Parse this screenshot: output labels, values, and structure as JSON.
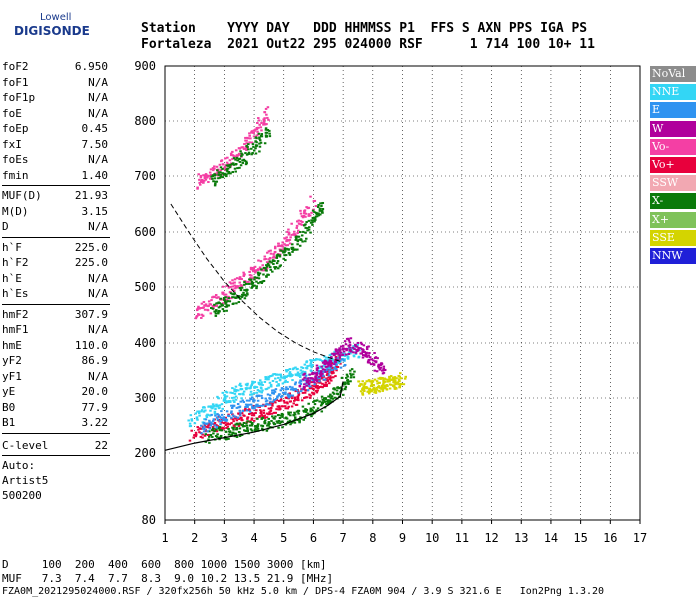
{
  "logo": {
    "line1": "Lowell",
    "line2": "DIGISONDE"
  },
  "header": {
    "line1": "Station    YYYY DAY   DDD HHMMSS P1  FFS S AXN PPS IGA PS",
    "line2": "Fortaleza  2021 Out22 295 024000 RSF      1 714 100 10+ 11"
  },
  "params_group1": [
    {
      "name": "foF2",
      "value": "6.950"
    },
    {
      "name": "foF1",
      "value": "N/A"
    },
    {
      "name": "foF1p",
      "value": "N/A"
    },
    {
      "name": "foE",
      "value": "N/A"
    },
    {
      "name": "foEp",
      "value": "0.45"
    },
    {
      "name": "fxI",
      "value": "7.50"
    },
    {
      "name": "foEs",
      "value": "N/A"
    },
    {
      "name": "fmin",
      "value": "1.40"
    }
  ],
  "params_group2": [
    {
      "name": "MUF(D)",
      "value": "21.93"
    },
    {
      "name": "M(D)",
      "value": "3.15"
    },
    {
      "name": "D",
      "value": "N/A"
    }
  ],
  "params_group3": [
    {
      "name": "h`F",
      "value": "225.0"
    },
    {
      "name": "h`F2",
      "value": "225.0"
    },
    {
      "name": "h`E",
      "value": "N/A"
    },
    {
      "name": "h`Es",
      "value": "N/A"
    }
  ],
  "params_group4": [
    {
      "name": "hmF2",
      "value": "307.9"
    },
    {
      "name": "hmF1",
      "value": "N/A"
    },
    {
      "name": "hmE",
      "value": "110.0"
    },
    {
      "name": "yF2",
      "value": "86.9"
    },
    {
      "name": "yF1",
      "value": "N/A"
    },
    {
      "name": "yE",
      "value": "20.0"
    },
    {
      "name": "B0",
      "value": "77.9"
    },
    {
      "name": "B1",
      "value": "3.22"
    }
  ],
  "clevel": {
    "name": "C-level",
    "value": "22"
  },
  "auto": {
    "line1": "Auto:",
    "line2": "Artist5",
    "line3": "500200"
  },
  "footer": {
    "d_line": "D     100  200  400  600  800 1000 1500 3000 [km]",
    "muf_line": "MUF   7.3  7.4  7.7  8.3  9.0 10.2 13.5 21.9 [MHz]",
    "info_line": "FZA0M_2021295024000.RSF / 320fx256h 50 kHz 5.0 km / DPS-4 FZA0M 904 / 3.9 S 321.6 E   Ion2Png 1.3.20"
  },
  "legend": [
    {
      "label": "NoVal",
      "color": "#8c8c8c"
    },
    {
      "label": "NNE",
      "color": "#33d6f5"
    },
    {
      "label": "E",
      "color": "#2f93f0"
    },
    {
      "label": "W",
      "color": "#b0009c"
    },
    {
      "label": "Vo-",
      "color": "#f43fa4"
    },
    {
      "label": "Vo+",
      "color": "#e8003c"
    },
    {
      "label": "SSW",
      "color": "#f2a8b2"
    },
    {
      "label": "X-",
      "color": "#0a7a0a"
    },
    {
      "label": "X+",
      "color": "#7fc25a"
    },
    {
      "label": "SSE",
      "color": "#d4d400"
    },
    {
      "label": "NNW",
      "color": "#1f1fd8"
    }
  ],
  "chart_data": {
    "type": "scatter",
    "xlabel": "",
    "ylabel": "",
    "xlim": [
      1,
      17
    ],
    "ylim": [
      80,
      900
    ],
    "x_ticks": [
      1,
      2,
      3,
      4,
      5,
      6,
      7,
      8,
      9,
      10,
      11,
      12,
      13,
      14,
      15,
      16,
      17
    ],
    "y_ticks": [
      80,
      200,
      300,
      400,
      500,
      600,
      700,
      800,
      900
    ],
    "grid": true,
    "traces": [
      {
        "name": "F2 O-mode",
        "color": "#e8003c",
        "x": [
          1.9,
          2.5,
          3.0,
          3.5,
          4.0,
          4.5,
          5.0,
          5.5,
          6.0,
          6.3,
          6.6,
          6.8
        ],
        "y": [
          235,
          248,
          258,
          266,
          274,
          282,
          292,
          305,
          320,
          332,
          350,
          380
        ]
      },
      {
        "name": "F2 X-mode",
        "color": "#0a7a0a",
        "x": [
          2.4,
          3.0,
          3.5,
          4.0,
          4.5,
          5.0,
          5.5,
          6.0,
          6.5,
          6.9,
          7.3
        ],
        "y": [
          232,
          238,
          244,
          250,
          256,
          262,
          270,
          285,
          300,
          320,
          350
        ]
      },
      {
        "name": "2F2 echo",
        "color": "#f43fa4",
        "x": [
          2.0,
          2.5,
          3.0,
          3.5,
          4.0,
          4.5,
          5.0,
          5.5,
          6.0
        ],
        "y": [
          455,
          470,
          490,
          510,
          530,
          555,
          585,
          620,
          660
        ]
      },
      {
        "name": "2F2 X echo",
        "color": "#0a7a0a",
        "x": [
          2.6,
          3.0,
          3.5,
          4.0,
          4.5,
          5.0,
          5.5,
          6.0,
          6.3
        ],
        "y": [
          460,
          472,
          490,
          512,
          535,
          560,
          590,
          625,
          650
        ]
      },
      {
        "name": "3F2 echo",
        "color": "#f43fa4",
        "x": [
          2.1,
          2.5,
          3.0,
          3.5,
          4.0,
          4.5
        ],
        "y": [
          690,
          705,
          725,
          750,
          780,
          820
        ]
      },
      {
        "name": "3F2 X echo",
        "color": "#0a7a0a",
        "x": [
          2.6,
          3.0,
          3.5,
          4.0,
          4.5
        ],
        "y": [
          695,
          710,
          730,
          755,
          785
        ]
      },
      {
        "name": "cyan spread",
        "color": "#33d6f5",
        "x": [
          1.8,
          2.5,
          3.0,
          3.5,
          4.0,
          4.5,
          5.0,
          5.5,
          6.0,
          6.5,
          7.0,
          7.5
        ],
        "y": [
          260,
          280,
          300,
          315,
          320,
          330,
          340,
          350,
          360,
          370,
          380,
          390
        ]
      },
      {
        "name": "blue spread",
        "color": "#2f93f0",
        "x": [
          2.2,
          2.8,
          3.4,
          4.0,
          4.6,
          5.2,
          5.8,
          6.4,
          7.0
        ],
        "y": [
          250,
          265,
          280,
          295,
          305,
          315,
          330,
          350,
          370
        ]
      },
      {
        "name": "magenta spread",
        "color": "#b0009c",
        "x": [
          5.6,
          6.0,
          6.4,
          6.8,
          7.2,
          7.6,
          8.0,
          8.4
        ],
        "y": [
          330,
          345,
          360,
          380,
          400,
          390,
          370,
          350
        ]
      },
      {
        "name": "yellow",
        "color": "#d4d400",
        "x": [
          7.5,
          7.8,
          8.1,
          8.4,
          8.7,
          9.0
        ],
        "y": [
          320,
          322,
          325,
          328,
          330,
          335
        ]
      }
    ],
    "profile_curve": {
      "x": [
        1.0,
        2.0,
        3.0,
        4.0,
        5.0,
        6.0,
        6.5,
        6.9,
        7.0
      ],
      "y": [
        205,
        218,
        228,
        238,
        252,
        272,
        287,
        303,
        330
      ]
    },
    "muf_curve_dashed": {
      "x": [
        1.2,
        1.8,
        2.4,
        3.0,
        3.6,
        4.2,
        4.8,
        5.4,
        6.0,
        6.6,
        7.0
      ],
      "y": [
        650,
        600,
        552,
        510,
        475,
        445,
        420,
        400,
        384,
        372,
        365
      ]
    }
  }
}
